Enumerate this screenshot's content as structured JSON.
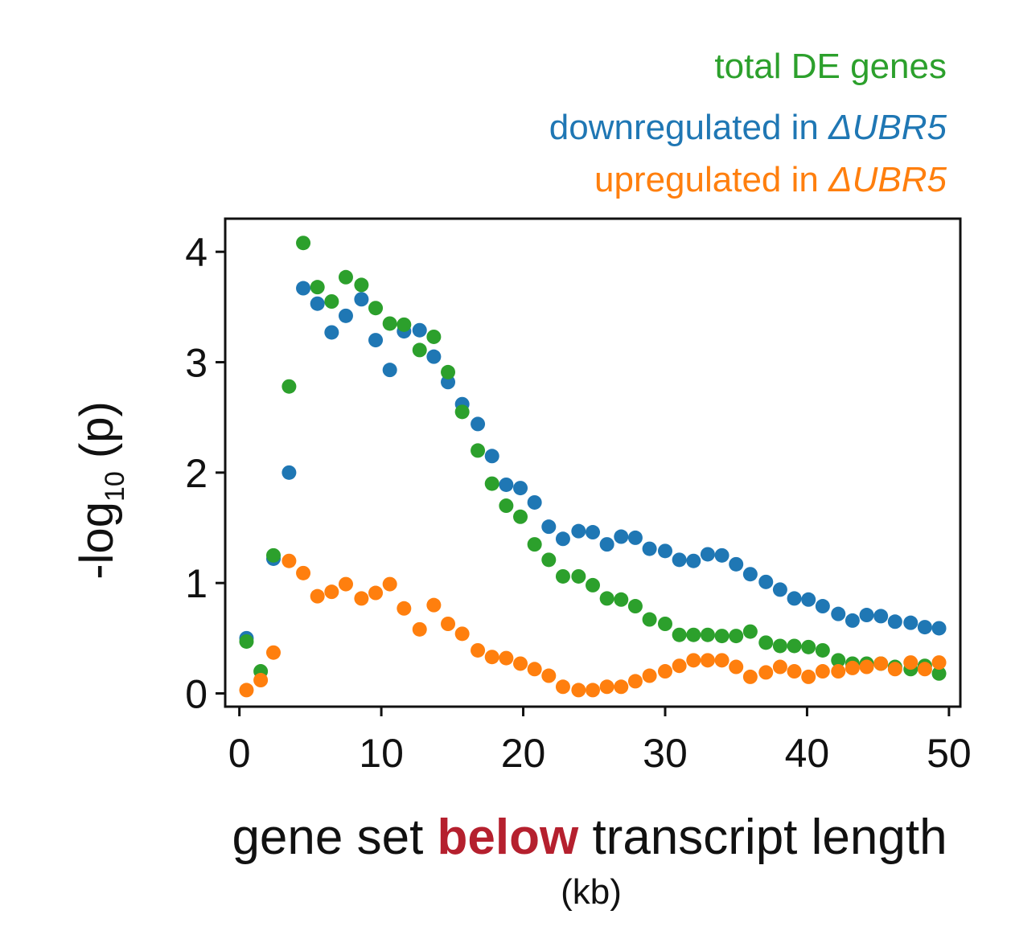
{
  "chart_data": {
    "type": "scatter",
    "title": "",
    "xlabel": {
      "part1": "gene set ",
      "part2": "below",
      "part3": " transcript length",
      "unit": "(kb)"
    },
    "ylabel": {
      "main": "-log",
      "subscript": "10",
      "suffix": " (p)"
    },
    "xlim": [
      -1,
      50.8
    ],
    "ylim": [
      -0.12,
      4.3
    ],
    "xticks": [
      0,
      10,
      20,
      30,
      40,
      50
    ],
    "yticks": [
      0,
      1,
      2,
      3,
      4
    ],
    "grid": false,
    "legend_position": "top-right",
    "legend": [
      {
        "text": "total DE genes",
        "italic_suffix": "",
        "color": "#2ca02c"
      },
      {
        "text": "downregulated in ",
        "italic_suffix": "ΔUBR5",
        "color": "#1f77b4"
      },
      {
        "text": "upregulated in ",
        "italic_suffix": "ΔUBR5",
        "color": "#ff7f0e"
      }
    ],
    "series": [
      {
        "color": "#1f77b4",
        "points": [
          [
            0.5,
            0.5
          ],
          [
            2.4,
            1.22
          ],
          [
            3.5,
            2.0
          ],
          [
            4.5,
            3.67
          ],
          [
            5.5,
            3.53
          ],
          [
            6.5,
            3.27
          ],
          [
            7.5,
            3.42
          ],
          [
            8.6,
            3.57
          ],
          [
            9.6,
            3.2
          ],
          [
            10.6,
            2.93
          ],
          [
            11.6,
            3.28
          ],
          [
            12.7,
            3.29
          ],
          [
            13.7,
            3.05
          ],
          [
            14.7,
            2.82
          ],
          [
            15.7,
            2.62
          ],
          [
            16.8,
            2.44
          ],
          [
            17.8,
            2.15
          ],
          [
            18.8,
            1.89
          ],
          [
            19.8,
            1.86
          ],
          [
            20.8,
            1.73
          ],
          [
            21.8,
            1.51
          ],
          [
            22.8,
            1.4
          ],
          [
            23.9,
            1.47
          ],
          [
            24.9,
            1.46
          ],
          [
            25.9,
            1.35
          ],
          [
            26.9,
            1.42
          ],
          [
            27.9,
            1.41
          ],
          [
            28.9,
            1.31
          ],
          [
            30.0,
            1.29
          ],
          [
            31.0,
            1.21
          ],
          [
            32.0,
            1.2
          ],
          [
            33.0,
            1.26
          ],
          [
            34.0,
            1.25
          ],
          [
            35.0,
            1.17
          ],
          [
            36.0,
            1.08
          ],
          [
            37.1,
            1.01
          ],
          [
            38.1,
            0.94
          ],
          [
            39.1,
            0.86
          ],
          [
            40.1,
            0.85
          ],
          [
            41.1,
            0.79
          ],
          [
            42.2,
            0.72
          ],
          [
            43.2,
            0.66
          ],
          [
            44.2,
            0.71
          ],
          [
            45.2,
            0.7
          ],
          [
            46.2,
            0.65
          ],
          [
            47.3,
            0.64
          ],
          [
            48.3,
            0.6
          ],
          [
            49.3,
            0.59
          ]
        ]
      },
      {
        "color": "#2ca02c",
        "points": [
          [
            0.5,
            0.47
          ],
          [
            1.5,
            0.2
          ],
          [
            2.4,
            1.25
          ],
          [
            3.5,
            2.78
          ],
          [
            4.5,
            4.08
          ],
          [
            5.5,
            3.68
          ],
          [
            6.5,
            3.55
          ],
          [
            7.5,
            3.77
          ],
          [
            8.6,
            3.7
          ],
          [
            9.6,
            3.49
          ],
          [
            10.6,
            3.35
          ],
          [
            11.6,
            3.34
          ],
          [
            12.7,
            3.11
          ],
          [
            13.7,
            3.23
          ],
          [
            14.7,
            2.91
          ],
          [
            15.7,
            2.55
          ],
          [
            16.8,
            2.2
          ],
          [
            17.8,
            1.9
          ],
          [
            18.8,
            1.7
          ],
          [
            19.8,
            1.6
          ],
          [
            20.8,
            1.35
          ],
          [
            21.8,
            1.21
          ],
          [
            22.8,
            1.06
          ],
          [
            23.9,
            1.06
          ],
          [
            24.9,
            0.98
          ],
          [
            25.9,
            0.86
          ],
          [
            26.9,
            0.85
          ],
          [
            27.9,
            0.79
          ],
          [
            28.9,
            0.67
          ],
          [
            30.0,
            0.63
          ],
          [
            31.0,
            0.53
          ],
          [
            32.0,
            0.53
          ],
          [
            33.0,
            0.53
          ],
          [
            34.0,
            0.52
          ],
          [
            35.0,
            0.52
          ],
          [
            36.0,
            0.56
          ],
          [
            37.1,
            0.46
          ],
          [
            38.1,
            0.43
          ],
          [
            39.1,
            0.43
          ],
          [
            40.1,
            0.42
          ],
          [
            41.1,
            0.39
          ],
          [
            42.2,
            0.3
          ],
          [
            43.2,
            0.27
          ],
          [
            44.2,
            0.27
          ],
          [
            45.2,
            0.27
          ],
          [
            46.2,
            0.24
          ],
          [
            47.3,
            0.22
          ],
          [
            48.3,
            0.25
          ],
          [
            49.3,
            0.18
          ]
        ]
      },
      {
        "color": "#ff7f0e",
        "points": [
          [
            0.5,
            0.03
          ],
          [
            1.5,
            0.12
          ],
          [
            2.4,
            0.37
          ],
          [
            3.5,
            1.2
          ],
          [
            4.5,
            1.09
          ],
          [
            5.5,
            0.88
          ],
          [
            6.5,
            0.92
          ],
          [
            7.5,
            0.99
          ],
          [
            8.6,
            0.86
          ],
          [
            9.6,
            0.91
          ],
          [
            10.6,
            0.99
          ],
          [
            11.6,
            0.77
          ],
          [
            12.7,
            0.58
          ],
          [
            13.7,
            0.8
          ],
          [
            14.7,
            0.63
          ],
          [
            15.7,
            0.54
          ],
          [
            16.8,
            0.39
          ],
          [
            17.8,
            0.33
          ],
          [
            18.8,
            0.32
          ],
          [
            19.8,
            0.27
          ],
          [
            20.8,
            0.22
          ],
          [
            21.8,
            0.16
          ],
          [
            22.8,
            0.06
          ],
          [
            23.9,
            0.03
          ],
          [
            24.9,
            0.03
          ],
          [
            25.9,
            0.06
          ],
          [
            26.9,
            0.06
          ],
          [
            27.9,
            0.11
          ],
          [
            28.9,
            0.16
          ],
          [
            30.0,
            0.2
          ],
          [
            31.0,
            0.25
          ],
          [
            32.0,
            0.3
          ],
          [
            33.0,
            0.3
          ],
          [
            34.0,
            0.3
          ],
          [
            35.0,
            0.24
          ],
          [
            36.0,
            0.15
          ],
          [
            37.1,
            0.19
          ],
          [
            38.1,
            0.24
          ],
          [
            39.1,
            0.2
          ],
          [
            40.1,
            0.15
          ],
          [
            41.1,
            0.2
          ],
          [
            42.2,
            0.2
          ],
          [
            43.2,
            0.23
          ],
          [
            44.2,
            0.24
          ],
          [
            45.2,
            0.27
          ],
          [
            46.2,
            0.22
          ],
          [
            47.3,
            0.28
          ],
          [
            48.3,
            0.22
          ],
          [
            49.3,
            0.28
          ]
        ]
      }
    ]
  }
}
